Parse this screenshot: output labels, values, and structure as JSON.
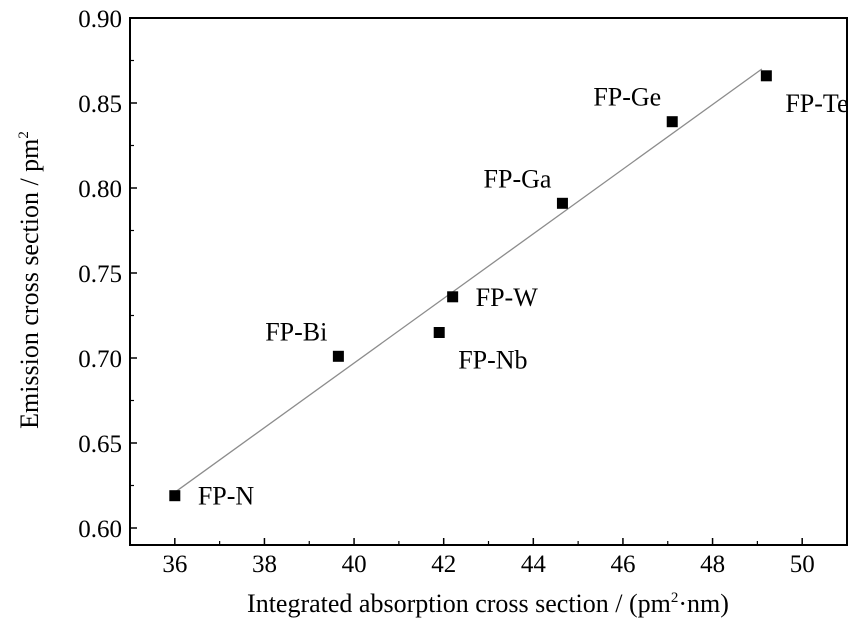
{
  "chart_data": {
    "type": "scatter",
    "xlabel_main": "Integrated absorption cross section / (pm",
    "xlabel_sup": "2",
    "xlabel_tail": "·nm)",
    "ylabel_main": "Emission cross section / pm",
    "ylabel_sup": "2",
    "xlim": [
      35,
      51
    ],
    "ylim": [
      0.59,
      0.9
    ],
    "xticks": [
      36,
      38,
      40,
      42,
      44,
      46,
      48,
      50
    ],
    "yticks": [
      0.6,
      0.65,
      0.7,
      0.75,
      0.8,
      0.85,
      0.9
    ],
    "xtick_labels": [
      "36",
      "38",
      "40",
      "42",
      "44",
      "46",
      "48",
      "50"
    ],
    "ytick_labels": [
      "0.60",
      "0.65",
      "0.70",
      "0.75",
      "0.80",
      "0.85",
      "0.90"
    ],
    "grid": false,
    "legend": "none",
    "points": [
      {
        "label": "FP-N",
        "x": 36.0,
        "y": 0.619,
        "label_side": "right"
      },
      {
        "label": "FP-Bi",
        "x": 39.65,
        "y": 0.701,
        "label_side": "upper-left"
      },
      {
        "label": "FP-Nb",
        "x": 41.9,
        "y": 0.715,
        "label_side": "lower-right"
      },
      {
        "label": "FP-W",
        "x": 42.2,
        "y": 0.736,
        "label_side": "right"
      },
      {
        "label": "FP-Ga",
        "x": 44.65,
        "y": 0.791,
        "label_side": "upper-left"
      },
      {
        "label": "FP-Ge",
        "x": 47.1,
        "y": 0.839,
        "label_side": "upper-left"
      },
      {
        "label": "FP-Te",
        "x": 49.2,
        "y": 0.866,
        "label_side": "lower-right"
      }
    ],
    "fit_line": {
      "x": [
        36.0,
        49.1
      ],
      "y": [
        0.621,
        0.87
      ]
    },
    "marker_color": "#000000",
    "fit_line_color": "#8c8c8c"
  }
}
